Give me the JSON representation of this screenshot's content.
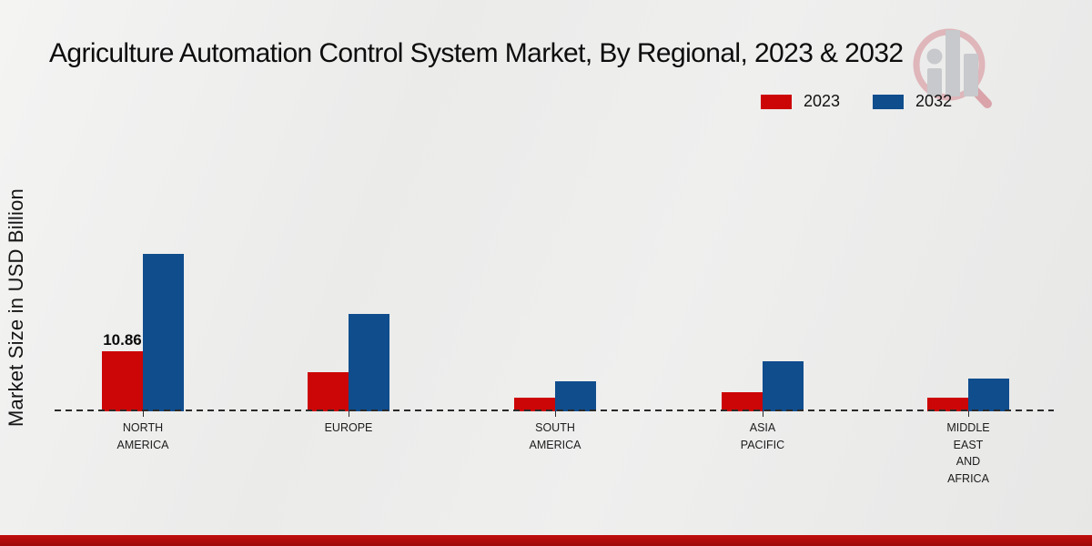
{
  "header": {
    "title": "Agriculture Automation Control System Market, By Regional, 2023 & 2032"
  },
  "watermark": {
    "icon": "bar-chart-magnifier-logo-icon",
    "ring_color": "#dfb6ba",
    "bars_color": "#c7c9cc"
  },
  "footer": {
    "strip_color": "#b50c0c"
  },
  "chart_data": {
    "type": "bar",
    "title": "Agriculture Automation Control System Market, By Regional, 2023 & 2032",
    "xlabel": "",
    "ylabel": "Market Size in USD Billion",
    "unit": "USD Billion",
    "grid": false,
    "legend_position": "top-right",
    "baseline_value": 0,
    "categories": [
      "NORTH AMERICA",
      "EUROPE",
      "SOUTH AMERICA",
      "ASIA PACIFIC",
      "MIDDLE EAST AND AFRICA"
    ],
    "category_label_lines": [
      [
        "NORTH",
        "AMERICA"
      ],
      [
        "EUROPE"
      ],
      [
        "SOUTH",
        "AMERICA"
      ],
      [
        "ASIA",
        "PACIFIC"
      ],
      [
        "MIDDLE",
        "EAST",
        "AND",
        "AFRICA"
      ]
    ],
    "series": [
      {
        "name": "2023",
        "color": "#cc0606",
        "values": [
          10.86,
          7.0,
          2.4,
          3.4,
          2.4
        ]
      },
      {
        "name": "2032",
        "color": "#0f4d8d",
        "values": [
          28.4,
          17.6,
          5.5,
          9.0,
          6.0
        ]
      }
    ],
    "data_labels": [
      {
        "series": "2023",
        "category": "NORTH AMERICA",
        "value": "10.86"
      }
    ]
  }
}
